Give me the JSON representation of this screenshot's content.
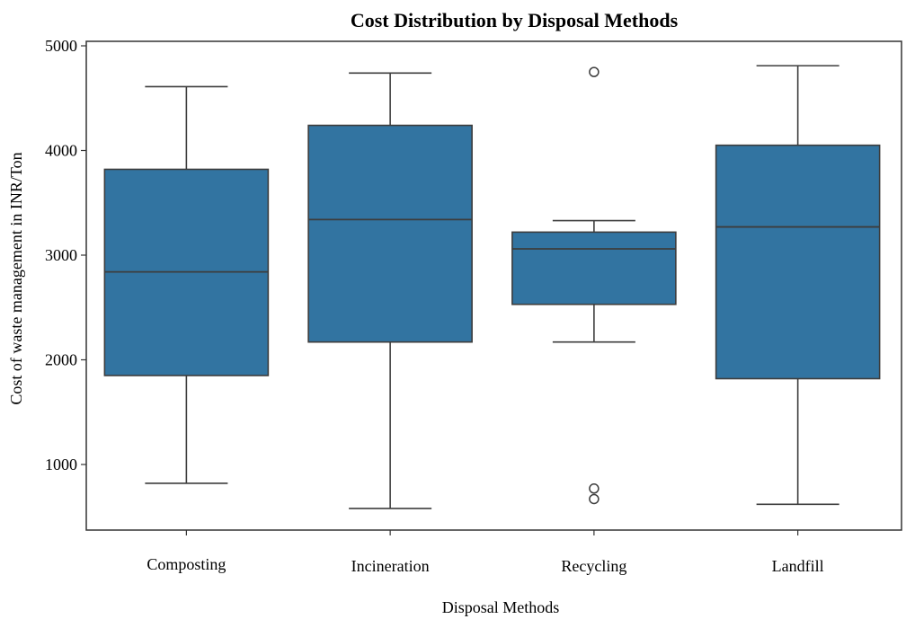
{
  "chart_data": {
    "type": "box",
    "title": "Cost Distribution by Disposal Methods",
    "xlabel": "Disposal Methods",
    "ylabel": "Cost of waste management  in INR/Ton",
    "categories": [
      "Composting",
      "Incineration",
      "Recycling",
      "Landfill"
    ],
    "ylim": [
      400,
      5050
    ],
    "yticks": [
      1000,
      2000,
      3000,
      4000,
      5000
    ],
    "ytick_labels": [
      "1000",
      "2000",
      "3000",
      "4000",
      "5000"
    ],
    "boxes": [
      {
        "category": "Composting",
        "whisker_low": 820,
        "q1": 1850,
        "median": 2840,
        "q3": 3820,
        "whisker_high": 4610,
        "outliers": []
      },
      {
        "category": "Incineration",
        "whisker_low": 580,
        "q1": 2170,
        "median": 3340,
        "q3": 4240,
        "whisker_high": 4740,
        "outliers": []
      },
      {
        "category": "Recycling",
        "whisker_low": 2170,
        "q1": 2530,
        "median": 3060,
        "q3": 3220,
        "whisker_high": 3330,
        "outliers": [
          4750,
          770,
          670
        ]
      },
      {
        "category": "Landfill",
        "whisker_low": 620,
        "q1": 1820,
        "median": 3270,
        "q3": 4050,
        "whisker_high": 4810,
        "outliers": []
      }
    ],
    "box_color": "#3274a1",
    "line_color": "#3d3d3d",
    "grid": false,
    "legend": "none"
  }
}
